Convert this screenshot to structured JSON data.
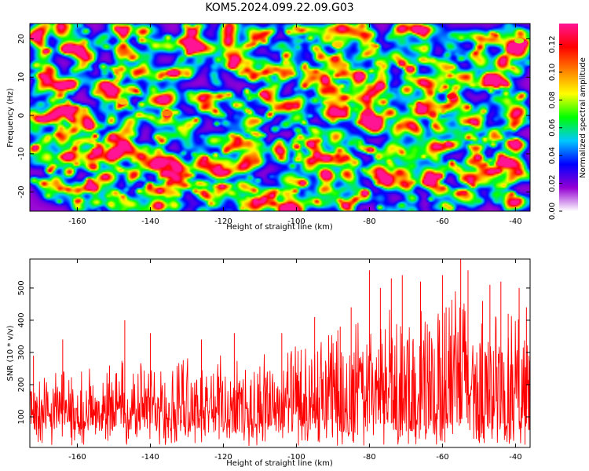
{
  "figure": {
    "title": "KOM5.2024.099.22.09.G03"
  },
  "chart_data": [
    {
      "type": "heatmap",
      "title": "KOM5.2024.099.22.09.G03",
      "xlabel": "Height of straight line (km)",
      "ylabel": "Frequency (Hz)",
      "xlim": [
        -173,
        -36
      ],
      "ylim": [
        -25,
        24
      ],
      "x_ticks": [
        -160,
        -140,
        -120,
        -100,
        -80,
        -60,
        -40
      ],
      "y_ticks": [
        -20,
        -10,
        0,
        10,
        20
      ],
      "colorbar": {
        "label": "Normalized spectral amplitude",
        "range": [
          0,
          0.135
        ],
        "ticks": [
          "0.00",
          "0.02",
          "0.04",
          "0.06",
          "0.08",
          "0.10",
          "0.12"
        ],
        "colormap": [
          "#ffffff",
          "#9400d3",
          "#0000ff",
          "#00c8ff",
          "#00ff00",
          "#ffff00",
          "#ff8000",
          "#ff0000",
          "#ff1493"
        ]
      },
      "peaks": [
        {
          "x": -80.5,
          "y": 0.5,
          "value": 0.13
        },
        {
          "x": -57.5,
          "y": 5,
          "value": 0.12
        },
        {
          "x": -135.5,
          "y": 0.5,
          "value": 0.1
        },
        {
          "x": -147.5,
          "y": 3.5,
          "value": 0.09
        },
        {
          "x": -89,
          "y": 18.5,
          "value": 0.09
        },
        {
          "x": -39,
          "y": 19.5,
          "value": 0.08
        }
      ]
    },
    {
      "type": "line",
      "xlabel": "Height of straight line (km)",
      "ylabel": "SNR (10 * v/v)",
      "xlim": [
        -173,
        -36
      ],
      "ylim": [
        5,
        590
      ],
      "x_ticks": [
        -160,
        -140,
        -120,
        -100,
        -80,
        -60,
        -40
      ],
      "y_ticks": [
        100,
        200,
        300,
        400,
        500
      ],
      "line_color": "#ff0000",
      "x_step": 0.12,
      "envelope": {
        "x": [
          -173,
          -160,
          -150,
          -140,
          -130,
          -120,
          -110,
          -100,
          -90,
          -80,
          -70,
          -60,
          -55,
          -50,
          -45,
          -40,
          -36
        ],
        "low": [
          60,
          60,
          55,
          55,
          55,
          50,
          50,
          50,
          50,
          50,
          55,
          60,
          60,
          55,
          60,
          60,
          60
        ],
        "high": [
          230,
          250,
          290,
          280,
          300,
          300,
          290,
          320,
          360,
          420,
          460,
          480,
          500,
          470,
          430,
          420,
          380
        ]
      },
      "peaks": [
        {
          "x": -172,
          "y": 290
        },
        {
          "x": -164,
          "y": 340
        },
        {
          "x": -147,
          "y": 400
        },
        {
          "x": -140,
          "y": 360
        },
        {
          "x": -126,
          "y": 340
        },
        {
          "x": -117,
          "y": 360
        },
        {
          "x": -104,
          "y": 360
        },
        {
          "x": -95,
          "y": 410
        },
        {
          "x": -88,
          "y": 380
        },
        {
          "x": -85,
          "y": 440
        },
        {
          "x": -80,
          "y": 555
        },
        {
          "x": -77,
          "y": 500
        },
        {
          "x": -74,
          "y": 530
        },
        {
          "x": -71,
          "y": 540
        },
        {
          "x": -66,
          "y": 520
        },
        {
          "x": -60,
          "y": 540
        },
        {
          "x": -59,
          "y": 440
        },
        {
          "x": -55,
          "y": 595
        },
        {
          "x": -53,
          "y": 555
        },
        {
          "x": -49,
          "y": 460
        },
        {
          "x": -47,
          "y": 510
        },
        {
          "x": -44,
          "y": 520
        },
        {
          "x": -42,
          "y": 420
        },
        {
          "x": -39,
          "y": 500
        },
        {
          "x": -37,
          "y": 440
        }
      ]
    }
  ]
}
